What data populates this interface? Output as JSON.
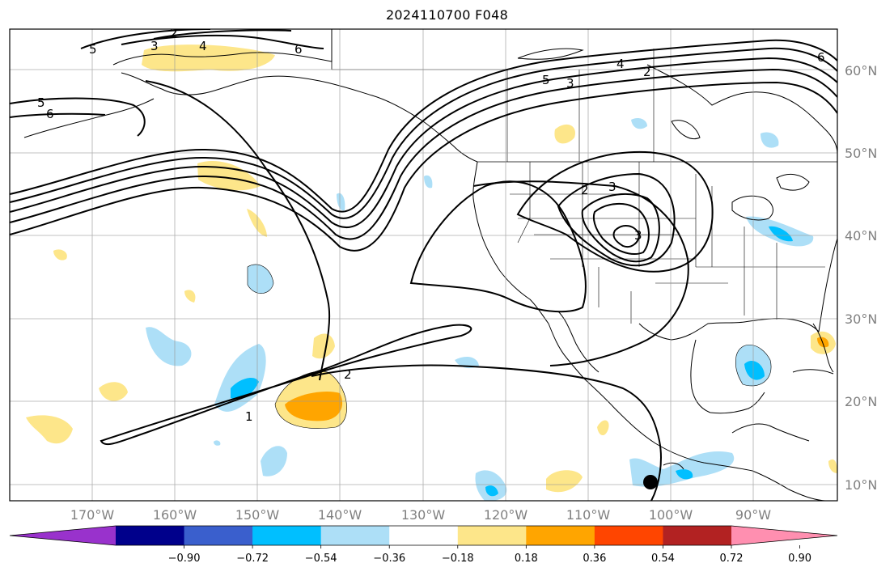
{
  "title": "2024110700 F048",
  "map": {
    "lat_labels": [
      "60°N",
      "50°N",
      "40°N",
      "30°N",
      "20°N",
      "10°N"
    ],
    "lon_labels": [
      "170°W",
      "160°W",
      "150°W",
      "140°W",
      "130°W",
      "120°W",
      "110°W",
      "100°W",
      "90°W"
    ],
    "contour_labels": [
      "3",
      "2",
      "4",
      "6",
      "5",
      "6",
      "5",
      "3",
      "4",
      "2",
      "2",
      "3",
      "3",
      "1",
      "2",
      "6",
      "5"
    ],
    "marker": "black-dot",
    "colors": {
      "land_outline": "#000000",
      "grid": "#999999",
      "contour": "#000000"
    }
  },
  "colorbar": {
    "ticks": [
      "−0.90",
      "−0.72",
      "−0.54",
      "−0.36",
      "−0.18",
      "0.18",
      "0.36",
      "0.54",
      "0.72",
      "0.90"
    ],
    "colors": [
      "#9932CC",
      "#00008B",
      "#3A5FCD",
      "#00BFFF",
      "#ADDFF7",
      "#FFFFFF",
      "#FDE68A",
      "#FFA500",
      "#FF4500",
      "#B22222",
      "#FF8FB0"
    ]
  }
}
